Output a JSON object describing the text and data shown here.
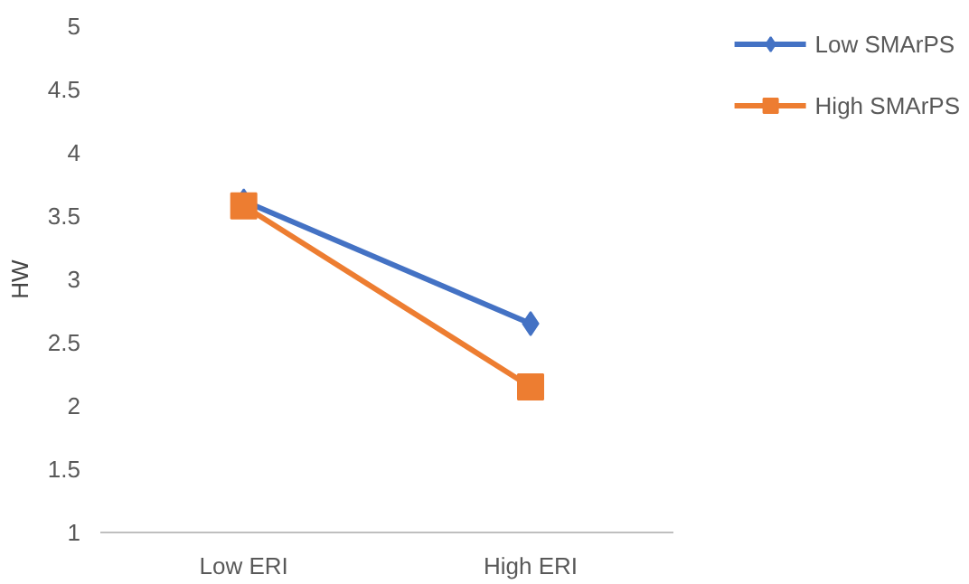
{
  "chart_data": {
    "type": "line",
    "ylabel": "HW",
    "categories": [
      "Low ERI",
      "High ERI"
    ],
    "series": [
      {
        "name": "Low SMArPS",
        "color": "#4472c4",
        "values": [
          3.62,
          2.65
        ],
        "marker": "diamond"
      },
      {
        "name": "High SMArPS",
        "color": "#ed7d31",
        "values": [
          3.58,
          2.15
        ],
        "marker": "square"
      }
    ],
    "ylim": [
      1,
      5
    ],
    "yticks": [
      1,
      1.5,
      2,
      2.5,
      3,
      3.5,
      4,
      4.5,
      5
    ],
    "grid": false,
    "legend": "top right",
    "line_style": "solid"
  }
}
